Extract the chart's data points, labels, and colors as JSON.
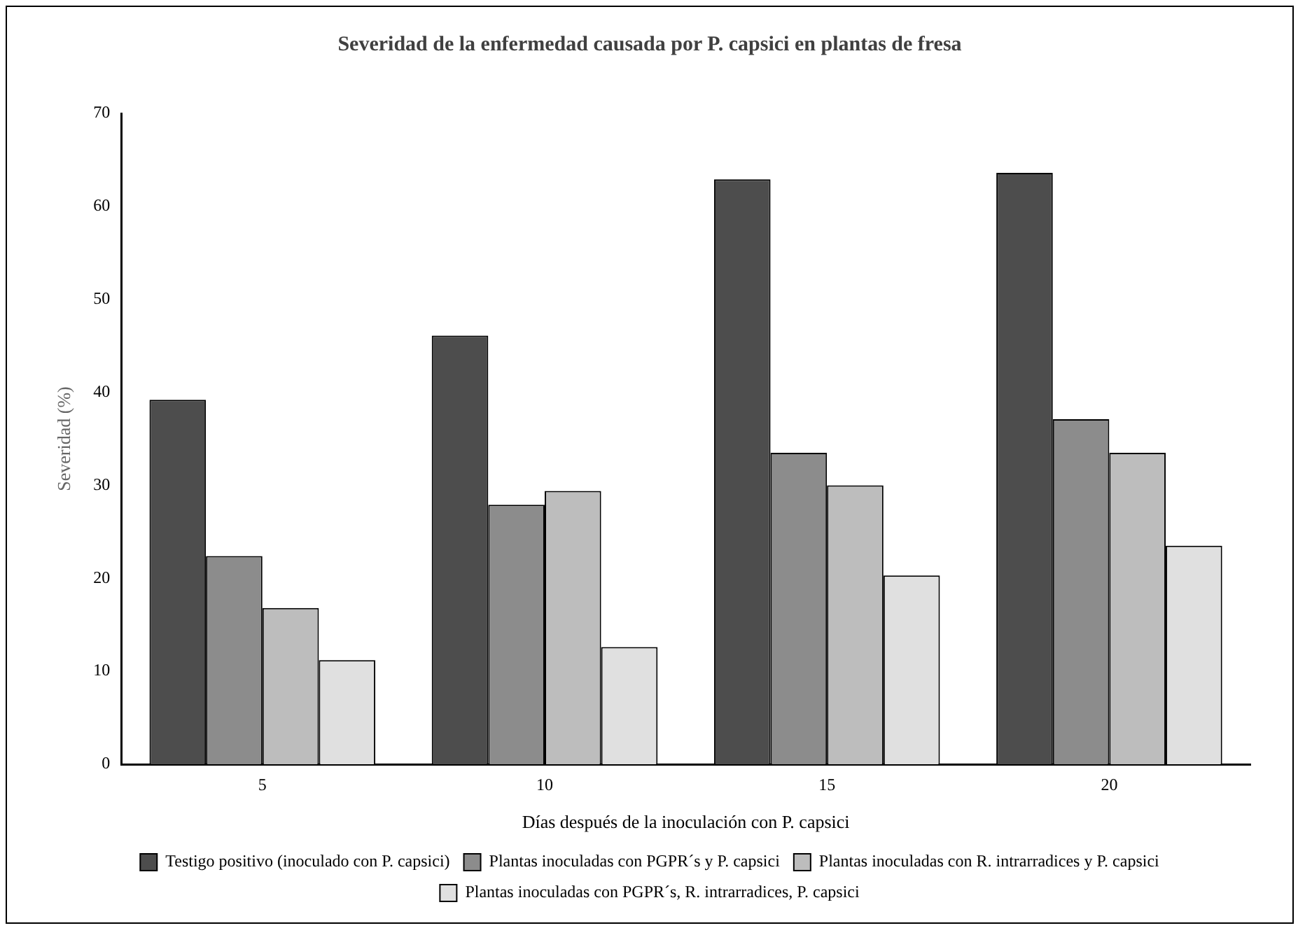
{
  "chart_data": {
    "type": "bar",
    "title": "Severidad de la enfermedad causada por P. capsici en plantas de fresa",
    "xlabel": "Días después de la inoculación con P. capsici",
    "ylabel": "Severidad (%)",
    "categories": [
      "5",
      "10",
      "15",
      "20"
    ],
    "series": [
      {
        "name": "Testigo positivo (inoculado con P. capsici)",
        "color": "#4d4d4d",
        "values": [
          39.2,
          46.1,
          62.9,
          63.6
        ]
      },
      {
        "name": "Plantas inoculadas con PGPR´s y P. capsici",
        "color": "#8c8c8c",
        "values": [
          22.4,
          27.9,
          33.5,
          37.1
        ]
      },
      {
        "name": "Plantas inoculadas con R. intrarradices y P. capsici",
        "color": "#bdbdbd",
        "values": [
          16.8,
          29.4,
          30.0,
          33.5
        ]
      },
      {
        "name": "Plantas inoculadas con PGPR´s, R. intrarradices, P. capsici",
        "color": "#e0e0e0",
        "values": [
          11.2,
          12.6,
          20.3,
          23.5
        ]
      }
    ],
    "ylim": [
      0,
      70
    ],
    "yticks": [
      0,
      10,
      20,
      30,
      40,
      50,
      60,
      70
    ],
    "grid": false,
    "legend": "bottom"
  }
}
